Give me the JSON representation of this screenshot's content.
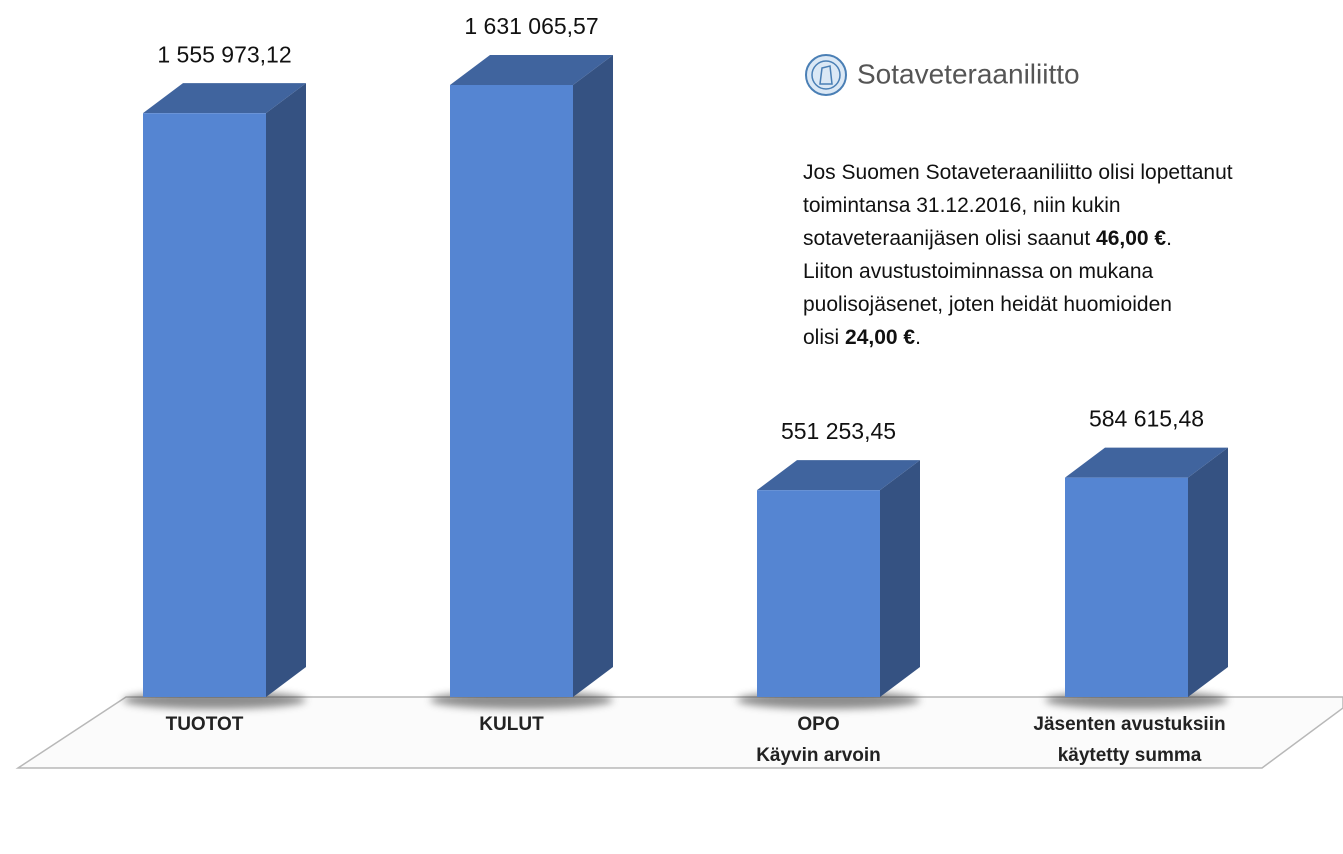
{
  "chart_data": {
    "type": "bar3d",
    "categories": [
      [
        "TUOTOT"
      ],
      [
        "KULUT"
      ],
      [
        "OPO",
        "Käyvin arvoin"
      ],
      [
        "Jäsenten avustuksiin",
        "käytetty summa"
      ]
    ],
    "values": [
      1555973.12,
      1631065.57,
      551253.45,
      584615.48
    ],
    "value_labels": [
      "1 555 973,12",
      "1 631 065,57",
      "551 253,45",
      "584 615,48"
    ],
    "color": "#5585d2"
  },
  "note": {
    "title": "Sotaveteraaniliitto",
    "lines": [
      [
        {
          "text": "Jos Suomen Sotaveteraaniliitto olisi lopettanut",
          "bold": false
        }
      ],
      [
        {
          "text": "toimintansa 31.12.2016, niin kukin",
          "bold": false
        }
      ],
      [
        {
          "text": "sotaveteraanijäsen olisi saanut ",
          "bold": false
        },
        {
          "text": "46,00 €",
          "bold": true
        },
        {
          "text": ".",
          "bold": false
        }
      ],
      [
        {
          "text": "Liiton avustustoiminnassa on mukana",
          "bold": false
        }
      ],
      [
        {
          "text": "puolisojäsenet, joten heidät huomioiden",
          "bold": false
        }
      ],
      [
        {
          "text": "olisi ",
          "bold": false
        },
        {
          "text": "24,00 €",
          "bold": true
        },
        {
          "text": ".",
          "bold": false
        }
      ]
    ]
  }
}
